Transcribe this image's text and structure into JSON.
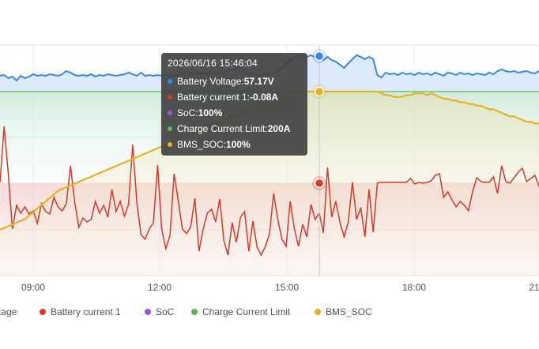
{
  "chart_data": {
    "type": "line",
    "title": "",
    "xlabel": "",
    "ylabel": "",
    "x_ticks": [
      "09:00",
      "12:00",
      "15:00",
      "18:00",
      "21"
    ],
    "grid": true,
    "legend_position": "bottom",
    "series": [
      {
        "name": "Battery Voltage",
        "color": "#3a86e6",
        "fill": "#cfe2fb",
        "values": [
          96,
          95,
          99,
          97,
          102,
          96,
          99,
          97,
          94,
          96,
          95,
          96,
          94,
          95,
          96,
          94,
          90,
          92,
          95,
          96,
          95,
          96,
          94,
          97,
          95,
          96,
          94,
          95,
          96,
          95,
          94,
          92,
          94,
          96,
          92,
          96,
          95,
          96,
          95,
          96,
          94,
          96,
          95,
          96,
          93,
          91,
          92,
          94,
          92,
          94,
          93,
          91,
          94,
          93,
          92,
          90,
          88,
          86,
          85,
          90,
          95,
          92,
          94,
          96,
          93,
          95,
          94,
          90,
          86,
          82,
          76,
          72,
          70,
          72,
          72,
          70,
          72,
          74,
          76,
          72,
          76,
          78,
          82,
          86,
          80,
          75,
          70,
          72,
          75,
          72,
          75,
          95,
          98,
          92,
          94,
          93,
          95,
          92,
          94,
          93,
          95,
          92,
          94,
          93,
          95,
          92,
          94,
          96,
          92,
          93,
          95,
          92,
          94,
          93,
          95,
          93,
          94,
          95,
          92,
          94,
          90,
          88,
          90,
          91,
          90,
          92,
          91,
          90,
          92,
          93,
          90
        ]
      },
      {
        "name": "Battery current 1",
        "color": "#d9392b",
        "values": [
          231,
          160,
          220,
          290,
          260,
          270,
          262,
          271,
          267,
          283,
          258,
          268,
          271,
          250,
          262,
          267,
          258,
          210,
          255,
          288,
          276,
          281,
          278,
          255,
          270,
          260,
          275,
          240,
          268,
          255,
          274,
          259,
          183,
          256,
          297,
          303,
          290,
          282,
          209,
          290,
          315,
          298,
          220,
          255,
          290,
          296,
          287,
          251,
          318,
          290,
          270,
          265,
          281,
          252,
          305,
          323,
          282,
          307,
          275,
          268,
          318,
          280,
          313,
          323,
          312,
          296,
          245,
          278,
          303,
          312,
          255,
          290,
          312,
          284,
          300,
          259,
          278,
          270,
          295,
          212,
          275,
          255,
          282,
          300,
          281,
          231,
          278,
          263,
          300,
          240,
          294,
          232,
          231,
          231,
          231,
          231,
          231,
          231,
          231,
          226,
          233,
          231,
          232,
          231,
          229,
          222,
          220,
          250,
          243,
          253,
          262,
          255,
          260,
          267,
          242,
          225,
          230,
          231,
          231,
          224,
          245,
          210,
          230,
          232,
          225,
          218,
          213,
          230,
          226,
          222,
          236,
          220,
          210,
          225,
          213,
          217,
          214,
          216,
          209,
          213,
          212
        ]
      },
      {
        "name": "SoC",
        "color": "#9b59d0",
        "values": []
      },
      {
        "name": "Charge Current Limit",
        "color": "#5cb85c",
        "values": [
          200,
          200,
          200,
          200,
          200,
          200,
          200,
          200,
          200,
          200,
          200,
          200,
          200,
          200,
          200,
          200,
          200,
          200,
          200,
          200,
          200,
          200,
          200,
          200,
          200,
          200,
          200,
          200,
          200,
          200,
          200,
          200,
          200,
          200,
          200,
          200,
          200,
          200,
          200,
          200,
          200,
          200,
          200,
          200,
          200,
          200,
          200,
          200,
          200,
          200,
          200,
          200,
          200,
          200,
          200,
          200,
          200,
          200,
          200,
          200,
          200,
          200,
          200,
          200,
          200,
          200,
          200,
          200,
          200,
          200,
          200,
          200,
          200,
          200,
          200,
          200,
          200,
          200,
          200,
          200,
          200,
          200,
          200,
          200,
          200,
          200,
          200,
          200,
          200,
          200,
          200,
          200,
          200,
          200,
          200,
          200,
          200,
          200,
          200,
          200,
          200,
          200,
          200,
          200,
          200,
          200,
          200,
          200,
          200,
          200,
          200,
          200,
          200,
          200,
          200,
          200,
          200,
          200,
          200,
          200,
          200,
          200,
          200,
          200,
          200,
          200,
          200,
          200,
          200,
          200,
          200
        ]
      },
      {
        "name": "BMS_SOC",
        "color": "#e6b325",
        "values": [
          22,
          23,
          24,
          25,
          26,
          27,
          28,
          30,
          32,
          34,
          36,
          38,
          40,
          42,
          44,
          45,
          46,
          47,
          48,
          49,
          50,
          51,
          52,
          53,
          54,
          55,
          56,
          57,
          58,
          59,
          60,
          61,
          62,
          63,
          64,
          65,
          66,
          67,
          68,
          69,
          70,
          71,
          72,
          73,
          74,
          75,
          76,
          77,
          78,
          79,
          80,
          81,
          82,
          83,
          84,
          85,
          86,
          87,
          88,
          89,
          90,
          91,
          92,
          93,
          94,
          95,
          96,
          97,
          98,
          99,
          100,
          100,
          100,
          100,
          100,
          100,
          100,
          100,
          100,
          100,
          100,
          100,
          100,
          100,
          100,
          100,
          100,
          100,
          100,
          100,
          100,
          100,
          99,
          98,
          98,
          97,
          97,
          97,
          98,
          98,
          99,
          99,
          99,
          98,
          99,
          98,
          97,
          96,
          96,
          95,
          95,
          94,
          94,
          93,
          93,
          92,
          92,
          91,
          90,
          90,
          89,
          88,
          87,
          86,
          86,
          85,
          84,
          83,
          83,
          82,
          82
        ]
      }
    ],
    "tooltip": {
      "time": "2026/06/16 15:46:04",
      "rows": [
        {
          "name": "Battery Voltage",
          "value": "57.17V",
          "color": "#3a86e6"
        },
        {
          "name": "Battery current 1",
          "value": "-0.08A",
          "color": "#d9392b"
        },
        {
          "name": "SoC",
          "value": "100%",
          "color": "#9b59d0"
        },
        {
          "name": "Charge Current Limit",
          "value": "200A",
          "color": "#5cb85c"
        },
        {
          "name": "BMS_SOC",
          "value": "100%",
          "color": "#e6b325"
        }
      ]
    },
    "legend": [
      {
        "label": "tage",
        "color": "#3a86e6"
      },
      {
        "label": "Battery current 1",
        "color": "#d9392b"
      },
      {
        "label": "SoC",
        "color": "#9b59d0"
      },
      {
        "label": "Charge Current Limit",
        "color": "#5cb85c"
      },
      {
        "label": "BMS_SOC",
        "color": "#e6b325"
      }
    ]
  }
}
